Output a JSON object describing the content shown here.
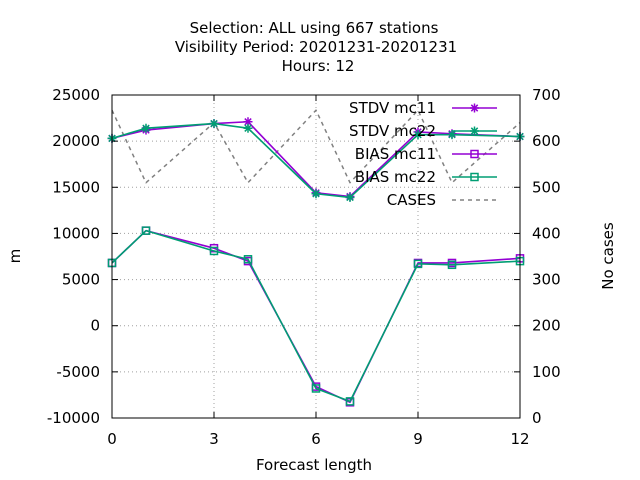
{
  "chart_data": {
    "type": "line",
    "title_lines": [
      "Selection: ALL using   667 stations",
      "Visibility   Period: 20201231-20201231",
      "Hours:  12"
    ],
    "xlabel": "Forecast length",
    "ylabel": "m",
    "y2label": "No cases",
    "x_ticks": [
      0,
      3,
      6,
      9,
      12
    ],
    "xlim": [
      0,
      12
    ],
    "ylim": [
      -10000,
      25000
    ],
    "y_ticks": [
      -10000,
      -5000,
      0,
      5000,
      10000,
      15000,
      20000,
      25000
    ],
    "y2lim": [
      0,
      700
    ],
    "y2_ticks": [
      0,
      100,
      200,
      300,
      400,
      500,
      600,
      700
    ],
    "grid": true,
    "legend_position": "top-right",
    "x": [
      0,
      1,
      3,
      4,
      6,
      7,
      9,
      10,
      12
    ],
    "series": [
      {
        "name": "STDV mc11",
        "axis": "y1",
        "color": "#9400d3",
        "marker": "x-star",
        "values": [
          20300,
          21200,
          21900,
          22100,
          14400,
          14000,
          21000,
          20800,
          20500
        ]
      },
      {
        "name": "STDV mc22",
        "axis": "y1",
        "color": "#009e73",
        "marker": "x-star",
        "values": [
          20300,
          21400,
          21900,
          21400,
          14300,
          13900,
          20700,
          20700,
          20500
        ]
      },
      {
        "name": "BIAS mc11",
        "axis": "y1",
        "color": "#9400d3",
        "marker": "open-square",
        "values": [
          6800,
          10300,
          8400,
          7000,
          -6600,
          -8300,
          6800,
          6800,
          7300
        ]
      },
      {
        "name": "BIAS mc22",
        "axis": "y1",
        "color": "#009e73",
        "marker": "open-square",
        "values": [
          6800,
          10300,
          8100,
          7200,
          -6800,
          -8200,
          6700,
          6600,
          7000
        ]
      },
      {
        "name": "CASES",
        "axis": "y2",
        "color": "#808080",
        "marker": "none",
        "dash": true,
        "values": [
          667,
          510,
          640,
          510,
          667,
          510,
          667,
          510,
          640
        ]
      }
    ]
  }
}
